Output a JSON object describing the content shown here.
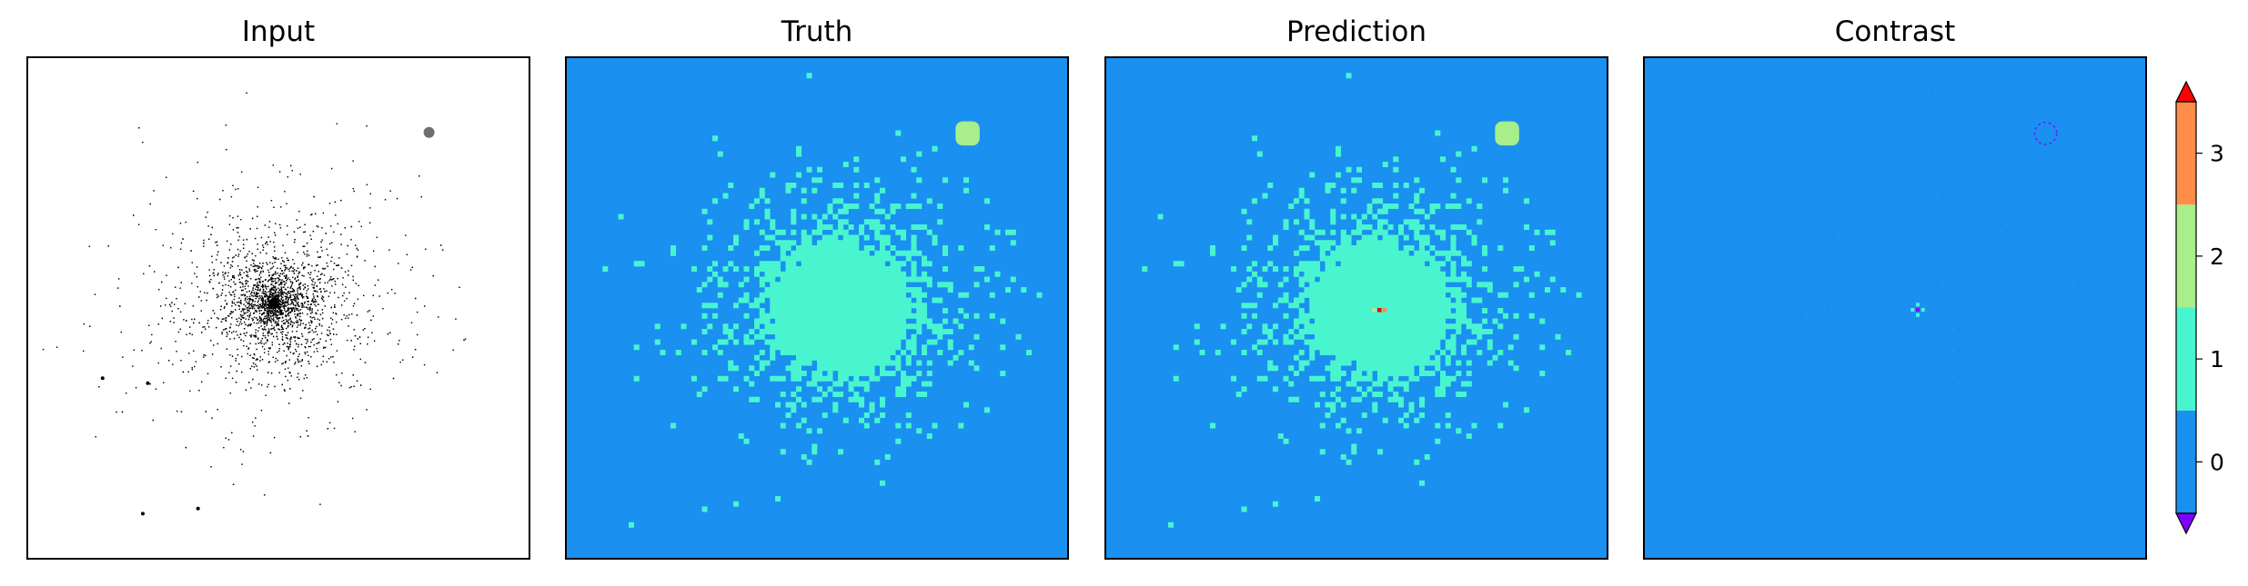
{
  "chart_data": {
    "type": "heatmap",
    "panels": [
      {
        "title": "Input",
        "style": "grayscale-points"
      },
      {
        "title": "Truth",
        "style": "class-map"
      },
      {
        "title": "Prediction",
        "style": "class-map"
      },
      {
        "title": "Contrast",
        "style": "difference-map"
      }
    ],
    "colorbar": {
      "ticks": [
        "0",
        "1",
        "2",
        "3"
      ],
      "levels": [
        {
          "range": [
            -0.5,
            0.5
          ],
          "color": "#1a90f0"
        },
        {
          "range": [
            0.5,
            1.5
          ],
          "color": "#48f5cf"
        },
        {
          "range": [
            1.5,
            2.5
          ],
          "color": "#a8ee8a"
        },
        {
          "range": [
            2.5,
            3.5
          ],
          "color": "#ff8c48"
        }
      ],
      "extend_low_color": "#8000ff",
      "extend_high_color": "#ff0000",
      "range": [
        -0.5,
        3.5
      ]
    },
    "background_class": 0,
    "cluster_class": 1,
    "blob_class": 2
  }
}
